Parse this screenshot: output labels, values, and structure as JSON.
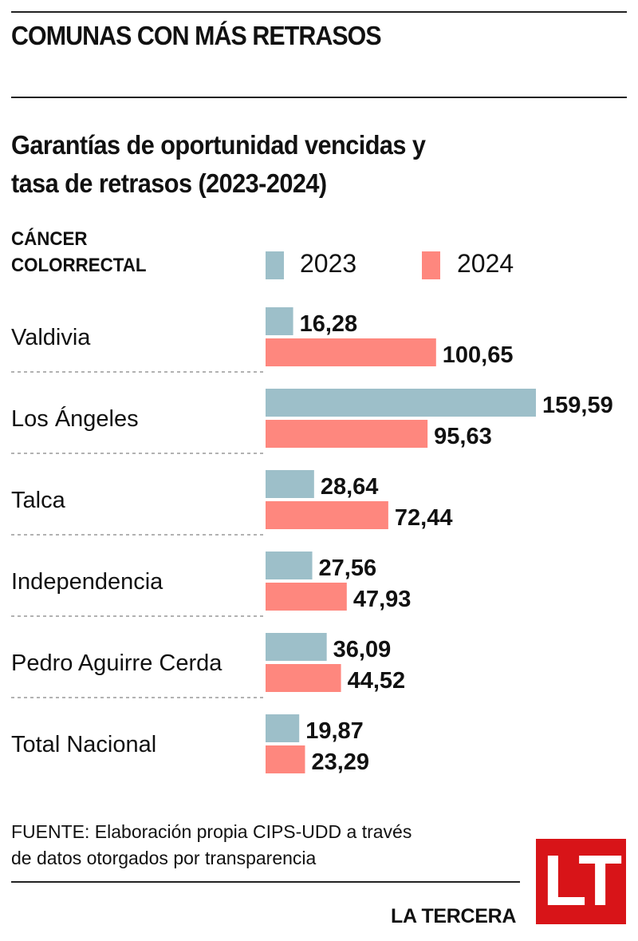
{
  "header": {
    "kicker": "COMUNAS CON MÁS RETRASOS",
    "title_line1": "Garantías de oportunidad vencidas y",
    "title_line2": "tasa de retrasos (2023-2024)"
  },
  "category": {
    "line1": "CÁNCER",
    "line2": "COLORRECTAL"
  },
  "colors": {
    "series_2023": "#9dbfc9",
    "series_2024": "#fe877e",
    "brand_red": "#d81418"
  },
  "chart_data": {
    "type": "bar",
    "orientation": "horizontal",
    "title": "Garantías de oportunidad vencidas y tasa de retrasos (2023-2024)",
    "subtitle": "CÁNCER COLORRECTAL",
    "xlabel": "",
    "ylabel": "",
    "legend_position": "top-right",
    "grid": false,
    "categories": [
      "Valdivia",
      "Los Ángeles",
      "Talca",
      "Independencia",
      "Pedro Aguirre Cerda",
      "Total Nacional"
    ],
    "series": [
      {
        "name": "2023",
        "values": [
          16.28,
          159.59,
          28.64,
          27.56,
          36.09,
          19.87
        ],
        "labels": [
          "16,28",
          "159,59",
          "28,64",
          "27,56",
          "36,09",
          "19,87"
        ]
      },
      {
        "name": "2024",
        "values": [
          100.65,
          95.63,
          72.44,
          47.93,
          44.52,
          23.29
        ],
        "labels": [
          "100,65",
          "95,63",
          "72,44",
          "47,93",
          "44,52",
          "23,29"
        ]
      }
    ],
    "xlim": [
      0,
      160
    ]
  },
  "footer": {
    "source_line1": "FUENTE: Elaboración propia CIPS-UDD a través",
    "source_line2": "de datos otorgados por transparencia",
    "brand": "LA TERCERA",
    "logo_text": "LT"
  }
}
